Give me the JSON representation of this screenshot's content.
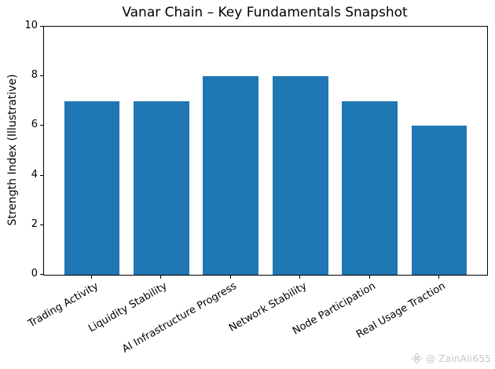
{
  "chart_data": {
    "type": "bar",
    "title": "Vanar Chain – Key Fundamentals Snapshot",
    "ylabel": "Strength Index (Illustrative)",
    "xlabel": "",
    "categories": [
      "Trading Activity",
      "Liquidity Stability",
      "AI Infrastructure Progress",
      "Network Stability",
      "Node Participation",
      "Real Usage Traction"
    ],
    "values": [
      7,
      7,
      8,
      8,
      7,
      6
    ],
    "ylim": [
      0,
      10
    ],
    "yticks": [
      0,
      2,
      4,
      6,
      8,
      10
    ],
    "bar_color": "#1f77b4",
    "grid": false,
    "legend_position": "none",
    "x_tick_rotation_deg": 30
  },
  "watermark": {
    "icon": "sparkle-diamond-icon",
    "text": "@ ZainAli655",
    "color": "#c9c9c9"
  }
}
